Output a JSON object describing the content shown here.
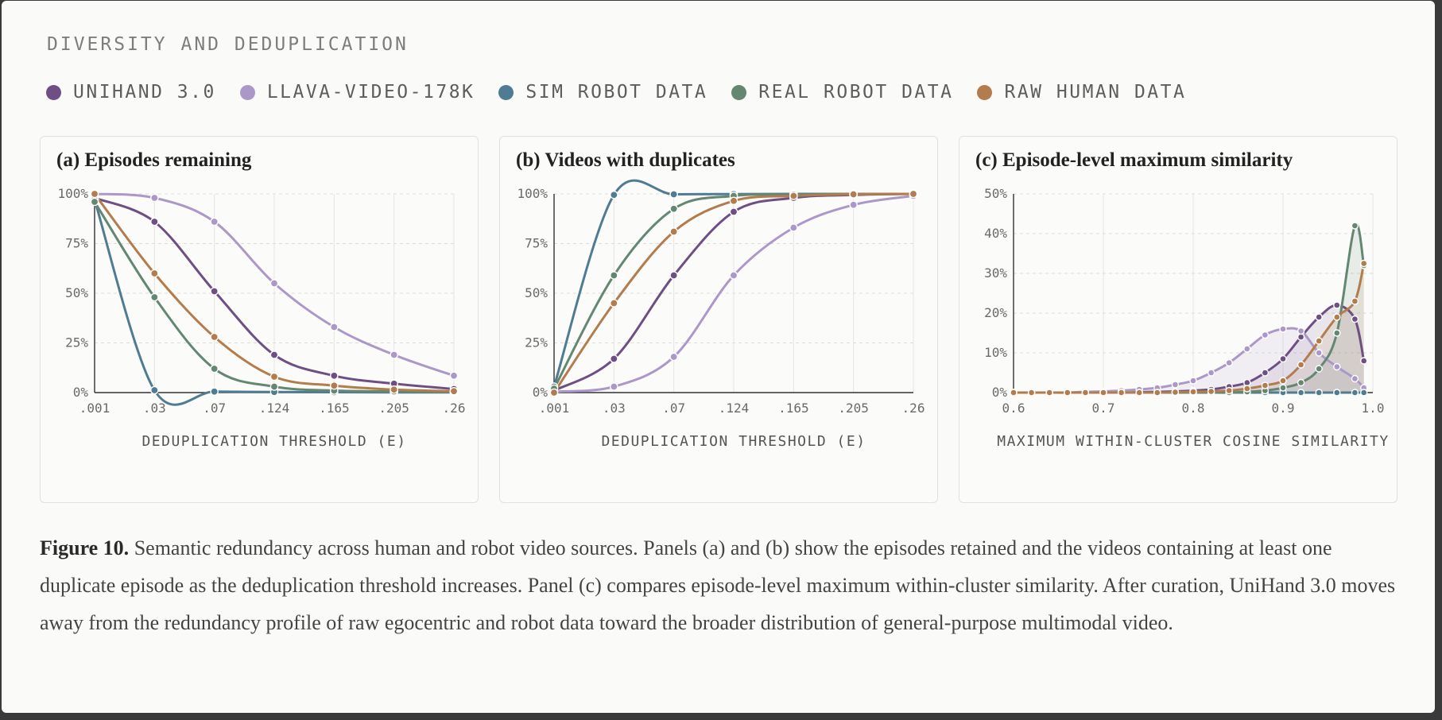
{
  "header": {
    "title": "DIVERSITY AND DEDUPLICATION"
  },
  "legend": [
    {
      "name": "UNIHAND 3.0",
      "color": "#6e4f84"
    },
    {
      "name": "LLAVA-VIDEO-178K",
      "color": "#ab98c9"
    },
    {
      "name": "SIM ROBOT DATA",
      "color": "#4f7c92"
    },
    {
      "name": "REAL ROBOT DATA",
      "color": "#638770"
    },
    {
      "name": "RAW HUMAN DATA",
      "color": "#b37c4c"
    }
  ],
  "chart_data": [
    {
      "type": "line",
      "title": "(a) Episodes remaining",
      "xlabel": "DEDUPLICATION THRESHOLD (E)",
      "ylabel": "",
      "x": [
        0.001,
        0.03,
        0.07,
        0.124,
        0.165,
        0.205,
        0.26
      ],
      "x_tick_labels": [
        ".001",
        ".03",
        ".07",
        ".124",
        ".165",
        ".205",
        ".26"
      ],
      "y_tick_labels": [
        "0%",
        "25%",
        "50%",
        "75%",
        "100%"
      ],
      "ylim": [
        0,
        100
      ],
      "grid": true,
      "series": [
        {
          "name": "UNIHAND 3.0",
          "values": [
            98,
            86,
            51,
            19,
            8.5,
            4.5,
            1.8
          ]
        },
        {
          "name": "LLAVA-VIDEO-178K",
          "values": [
            100,
            98,
            86,
            55,
            33,
            19,
            8.5
          ]
        },
        {
          "name": "SIM ROBOT DATA",
          "values": [
            97,
            1.2,
            0.5,
            0.3,
            0.2,
            0.1,
            0.1
          ]
        },
        {
          "name": "REAL ROBOT DATA",
          "values": [
            96,
            48,
            12,
            3,
            1,
            0.6,
            0.3
          ]
        },
        {
          "name": "RAW HUMAN DATA",
          "values": [
            100,
            60,
            28,
            8,
            3.5,
            1.5,
            0.7
          ]
        }
      ]
    },
    {
      "type": "line",
      "title": "(b) Videos with duplicates",
      "xlabel": "DEDUPLICATION THRESHOLD (E)",
      "ylabel": "",
      "x": [
        0.001,
        0.03,
        0.07,
        0.124,
        0.165,
        0.205,
        0.26
      ],
      "x_tick_labels": [
        ".001",
        ".03",
        ".07",
        ".124",
        ".165",
        ".205",
        ".26"
      ],
      "y_tick_labels": [
        "0%",
        "25%",
        "50%",
        "75%",
        "100%"
      ],
      "ylim": [
        0,
        100
      ],
      "grid": true,
      "series": [
        {
          "name": "UNIHAND 3.0",
          "values": [
            1,
            17,
            59,
            91,
            98,
            99.5,
            100
          ]
        },
        {
          "name": "LLAVA-VIDEO-178K",
          "values": [
            0.5,
            3,
            18,
            59,
            83,
            94.5,
            99
          ]
        },
        {
          "name": "SIM ROBOT DATA",
          "values": [
            3,
            99.5,
            99.8,
            99.9,
            100,
            100,
            100
          ]
        },
        {
          "name": "REAL ROBOT DATA",
          "values": [
            2,
            59,
            92.5,
            99,
            99.7,
            100,
            100
          ]
        },
        {
          "name": "RAW HUMAN DATA",
          "values": [
            0,
            45,
            81,
            96.5,
            99,
            99.8,
            100
          ]
        }
      ]
    },
    {
      "type": "area",
      "title": "(c) Episode-level maximum similarity",
      "xlabel": "MAXIMUM WITHIN-CLUSTER COSINE SIMILARITY",
      "ylabel": "",
      "x": [
        0.6,
        0.62,
        0.64,
        0.66,
        0.68,
        0.7,
        0.72,
        0.74,
        0.76,
        0.78,
        0.8,
        0.82,
        0.84,
        0.86,
        0.88,
        0.9,
        0.92,
        0.94,
        0.96,
        0.98,
        0.99
      ],
      "x_tick_labels": [
        "0.6",
        "0.7",
        "0.8",
        "0.9",
        "1.0"
      ],
      "xlim": [
        0.6,
        1.0
      ],
      "y_tick_labels": [
        "0%",
        "10%",
        "20%",
        "30%",
        "40%",
        "50%"
      ],
      "ylim": [
        0,
        50
      ],
      "grid": true,
      "series": [
        {
          "name": "UNIHAND 3.0",
          "values": [
            0,
            0,
            0,
            0,
            0,
            0,
            0,
            0.1,
            0.2,
            0.3,
            0.5,
            0.8,
            1.5,
            2.5,
            5,
            8.5,
            14,
            19,
            22,
            18.5,
            8
          ]
        },
        {
          "name": "LLAVA-VIDEO-178K",
          "values": [
            0,
            0,
            0,
            0,
            0.2,
            0.3,
            0.5,
            0.8,
            1.2,
            2,
            3,
            5,
            7.5,
            11,
            14.5,
            16,
            15.5,
            10,
            6.5,
            3.5,
            1.2
          ]
        },
        {
          "name": "SIM ROBOT DATA",
          "values": [
            0,
            0,
            0,
            0,
            0,
            0,
            0,
            0,
            0,
            0,
            0,
            0,
            0,
            0,
            0,
            0,
            0,
            0,
            0,
            0,
            0
          ]
        },
        {
          "name": "REAL ROBOT DATA",
          "values": [
            0,
            0,
            0,
            0,
            0,
            0,
            0,
            0,
            0,
            0,
            0,
            0,
            0,
            0.2,
            0.5,
            1.2,
            2.5,
            6,
            15,
            42,
            32
          ]
        },
        {
          "name": "RAW HUMAN DATA",
          "values": [
            0,
            0,
            0,
            0,
            0,
            0,
            0,
            0,
            0,
            0.1,
            0.2,
            0.3,
            0.5,
            1,
            1.8,
            3,
            7,
            13,
            19,
            23,
            32.5
          ]
        }
      ]
    }
  ],
  "caption": {
    "label": "Figure 10.",
    "text": " Semantic redundancy across human and robot video sources. Panels (a) and (b) show the episodes retained and the videos containing at least one duplicate episode as the deduplication threshold increases. Panel (c) compares episode-level maximum within-cluster similarity. After curation, UniHand 3.0 moves away from the redundancy profile of raw egocentric and robot data toward the broader distribution of general-purpose multimodal video."
  }
}
